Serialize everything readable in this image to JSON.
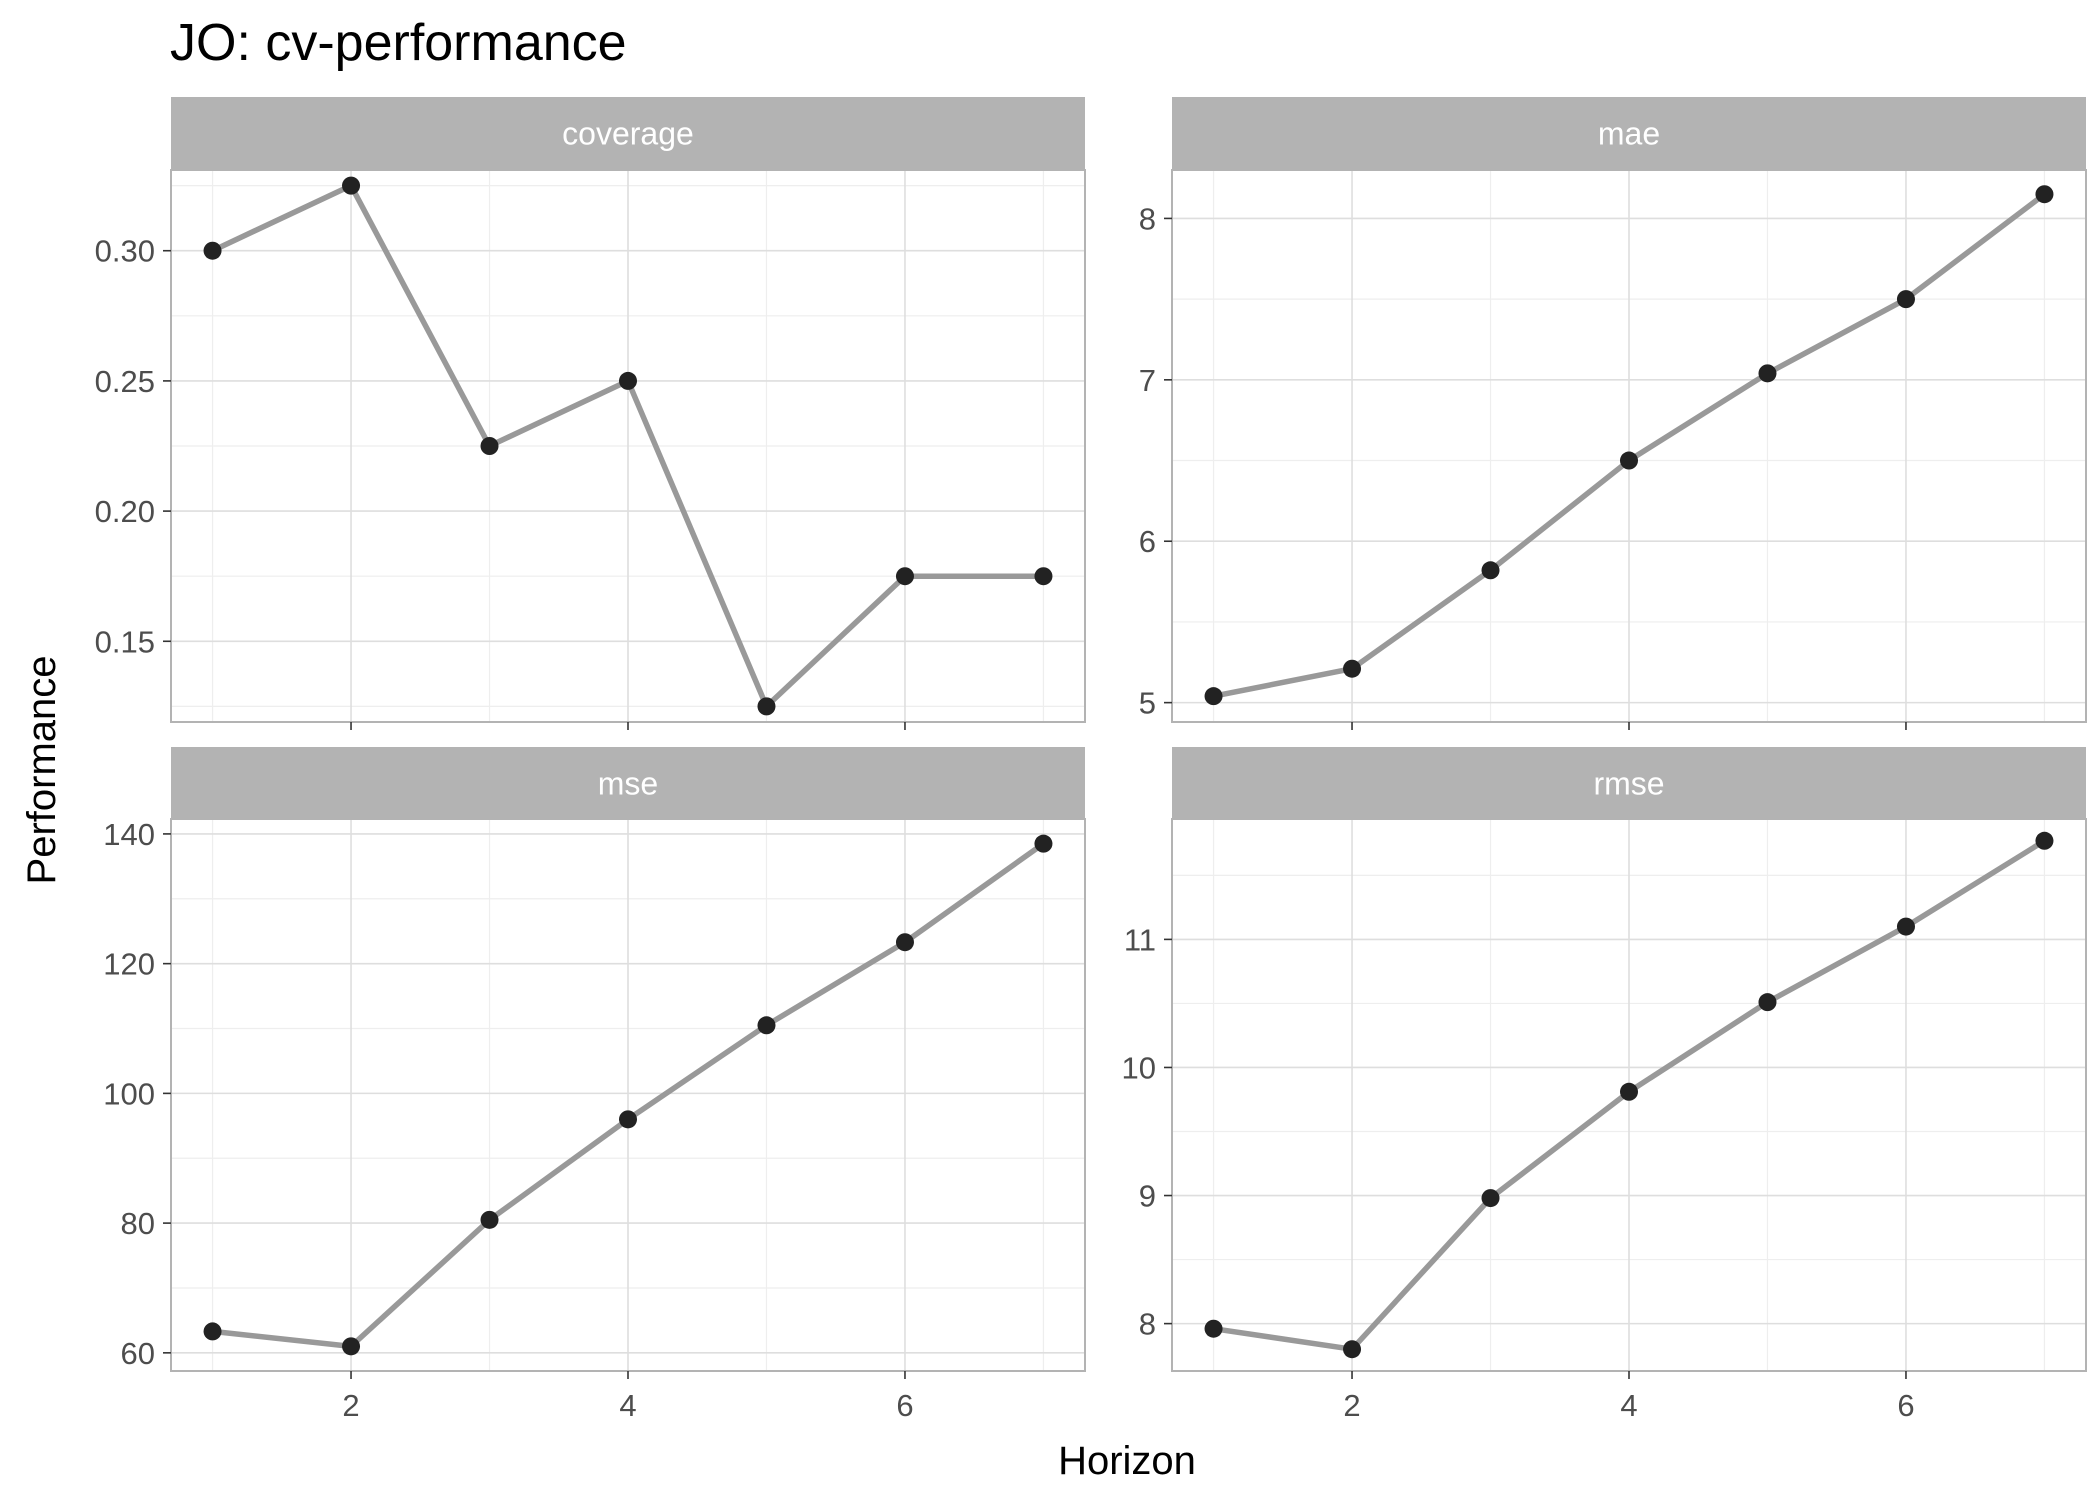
{
  "title": "JO: cv-performance",
  "xlabel": "Horizon",
  "ylabel": "Performance",
  "colors": {
    "line": "#999999",
    "point": "#222222",
    "strip": "#b3b3b3",
    "grid_major": "#dedede",
    "grid_minor": "#eeeeee",
    "panel_border": "#b3b3b3"
  },
  "chart_data": {
    "type": "line",
    "facet_layout": "2x2",
    "shared_x": true,
    "x": [
      1,
      2,
      3,
      4,
      5,
      6,
      7
    ],
    "xlim": [
      0.7,
      7.3
    ],
    "x_ticks": [
      2,
      4,
      6
    ],
    "grid": true,
    "panels": [
      {
        "name": "coverage",
        "values": [
          0.3,
          0.325,
          0.225,
          0.25,
          0.125,
          0.175,
          0.175
        ],
        "ylim": [
          0.119,
          0.331
        ],
        "y_ticks": [
          0.15,
          0.2,
          0.25,
          0.3
        ],
        "y_tick_labels": [
          "0.15",
          "0.20",
          "0.25",
          "0.30"
        ]
      },
      {
        "name": "mae",
        "values": [
          5.04,
          5.21,
          5.82,
          6.5,
          7.04,
          7.5,
          8.15
        ],
        "ylim": [
          4.88,
          8.3
        ],
        "y_ticks": [
          5,
          6,
          7,
          8
        ],
        "y_tick_labels": [
          "5",
          "6",
          "7",
          "8"
        ]
      },
      {
        "name": "mse",
        "values": [
          63.3,
          61.0,
          80.5,
          96.0,
          110.5,
          123.3,
          138.5
        ],
        "ylim": [
          57.2,
          142.3
        ],
        "y_ticks": [
          60,
          80,
          100,
          120,
          140
        ],
        "y_tick_labels": [
          "60",
          "80",
          "100",
          "120",
          "140"
        ]
      },
      {
        "name": "rmse",
        "values": [
          7.96,
          7.8,
          8.98,
          9.81,
          10.51,
          11.1,
          11.77
        ],
        "ylim": [
          7.63,
          11.94
        ],
        "y_ticks": [
          8,
          9,
          10,
          11
        ],
        "y_tick_labels": [
          "8",
          "9",
          "10",
          "11"
        ]
      }
    ]
  }
}
